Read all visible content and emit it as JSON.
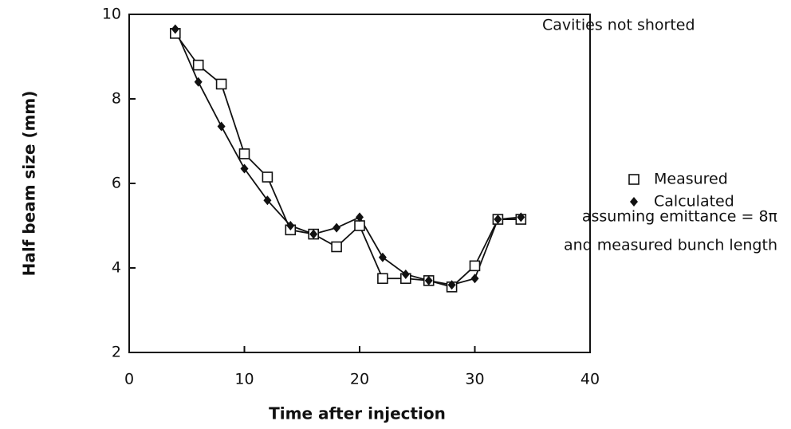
{
  "chart_data": {
    "type": "line",
    "xlabel": "Time after injection",
    "ylabel": "Half beam size (mm)",
    "annotation": "Cavities not shorted",
    "notes": [
      "assuming emittance = 8π",
      "and measured bunch length"
    ],
    "x": [
      4,
      6,
      8,
      10,
      12,
      14,
      16,
      18,
      20,
      22,
      24,
      26,
      28,
      30,
      32,
      34
    ],
    "series": [
      {
        "name": "Measured",
        "color": "#111111",
        "marker": "square",
        "values": [
          9.55,
          8.8,
          8.35,
          6.7,
          6.15,
          4.9,
          4.8,
          4.5,
          5.0,
          3.75,
          3.75,
          3.7,
          3.55,
          4.05,
          5.15,
          5.15
        ]
      },
      {
        "name": "Calculated",
        "color": "#111111",
        "marker": "diamond",
        "values": [
          9.65,
          8.4,
          7.35,
          6.35,
          5.6,
          5.0,
          4.8,
          4.95,
          5.2,
          4.25,
          3.85,
          3.7,
          3.6,
          3.75,
          5.15,
          5.2
        ]
      }
    ],
    "xlim": [
      0,
      40
    ],
    "xticks": [
      0,
      10,
      20,
      30,
      40
    ],
    "ylim": [
      2,
      10
    ],
    "yticks": [
      2,
      4,
      6,
      8,
      10
    ],
    "grid": false
  }
}
